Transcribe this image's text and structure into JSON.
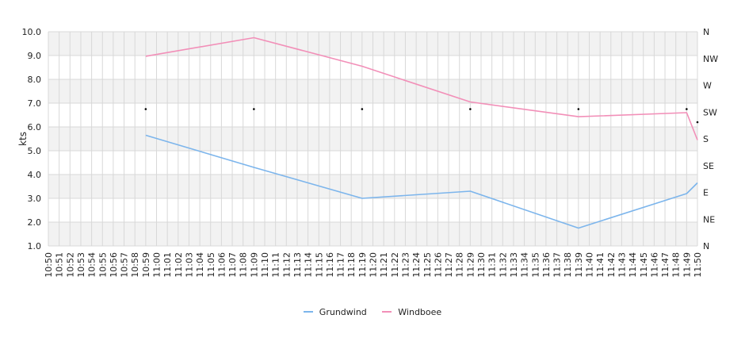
{
  "chart_data": {
    "type": "line",
    "ylabel": "kts",
    "ylim": [
      1.0,
      10.0
    ],
    "yticks": [
      "1.0",
      "2.0",
      "3.0",
      "4.0",
      "5.0",
      "6.0",
      "7.0",
      "8.0",
      "9.0",
      "10.0"
    ],
    "right_axis_labels": [
      "N",
      "NE",
      "E",
      "SE",
      "S",
      "SW",
      "W",
      "NW",
      "N"
    ],
    "categories": [
      "10:50",
      "10:51",
      "10:52",
      "10:53",
      "10:54",
      "10:55",
      "10:56",
      "10:57",
      "10:58",
      "10:59",
      "11:00",
      "11:01",
      "11:02",
      "11:03",
      "11:04",
      "11:05",
      "11:06",
      "11:07",
      "11:08",
      "11:09",
      "11:10",
      "11:11",
      "11:12",
      "11:13",
      "11:14",
      "11:15",
      "11:16",
      "11:17",
      "11:18",
      "11:19",
      "11:20",
      "11:21",
      "11:22",
      "11:23",
      "11:24",
      "11:25",
      "11:26",
      "11:27",
      "11:28",
      "11:29",
      "11:30",
      "11:31",
      "11:32",
      "11:33",
      "11:34",
      "11:35",
      "11:36",
      "11:37",
      "11:38",
      "11:39",
      "11:40",
      "11:41",
      "11:42",
      "11:43",
      "11:44",
      "11:45",
      "11:46",
      "11:47",
      "11:48",
      "11:49",
      "11:50"
    ],
    "series": [
      {
        "name": "Grundwind",
        "color": "#7cb5ec",
        "points": [
          [
            "10:59",
            5.65
          ],
          [
            "11:09",
            4.3
          ],
          [
            "11:19",
            3.0
          ],
          [
            "11:29",
            3.3
          ],
          [
            "11:39",
            1.75
          ],
          [
            "11:49",
            3.2
          ],
          [
            "11:50",
            3.65
          ]
        ]
      },
      {
        "name": "Windboee",
        "color": "#f28fb8",
        "points": [
          [
            "10:59",
            8.97
          ],
          [
            "11:09",
            9.75
          ],
          [
            "11:19",
            8.55
          ],
          [
            "11:29",
            7.05
          ],
          [
            "11:39",
            6.43
          ],
          [
            "11:49",
            6.6
          ],
          [
            "11:50",
            5.45
          ]
        ]
      }
    ],
    "direction_markers": [
      {
        "time": "10:59",
        "value": 6.75
      },
      {
        "time": "11:09",
        "value": 6.75
      },
      {
        "time": "11:19",
        "value": 6.75
      },
      {
        "time": "11:29",
        "value": 6.75
      },
      {
        "time": "11:39",
        "value": 6.75
      },
      {
        "time": "11:49",
        "value": 6.75
      },
      {
        "time": "11:50",
        "value": 6.2
      }
    ],
    "band_color": "#f2f2f2",
    "grid_color": "#d8d8d8",
    "legend_position": "bottom-center"
  }
}
